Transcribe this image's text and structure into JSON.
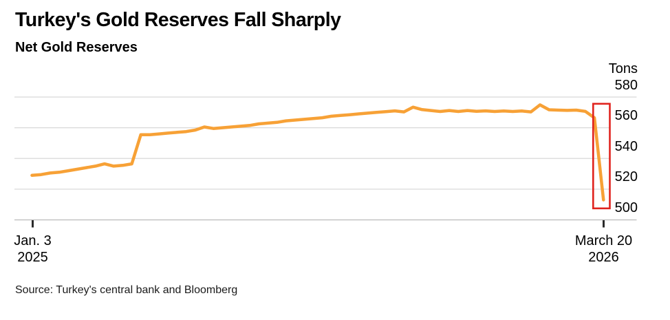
{
  "footer": {
    "source": "Source: Turkey's central bank and Bloomberg"
  },
  "colors": {
    "line": "#F7A136",
    "highlight_box": "#E0231E",
    "gridline": "#D8D8D8",
    "baseline": "#C2C2C2",
    "tick": "#2A2A2A",
    "text": "#000000",
    "background": "#FFFFFF"
  },
  "chart_data": {
    "type": "line",
    "title": "Turkey's Gold Reserves Fall Sharply",
    "subtitle": "Net Gold Reserves",
    "unit_label": "Tons",
    "ylabel": "Tons",
    "ylim": [
      500,
      580
    ],
    "yticks": [
      500,
      520,
      540,
      560,
      580
    ],
    "grid": true,
    "legend": false,
    "x_description": "Weekly observations from Jan. 3, 2025 to March 20, 2026",
    "x_ticks": [
      {
        "line1": "Jan. 3",
        "line2": "2025"
      },
      {
        "line1": "March 20",
        "line2": "2026"
      }
    ],
    "highlight": {
      "type": "box",
      "color": "#E0231E",
      "covers": "final weeks showing the sharp drop to about 513 tons"
    },
    "series": [
      {
        "name": "Net Gold Reserves",
        "color": "#F7A136",
        "values": [
          529,
          529.5,
          530.5,
          531,
          532,
          533,
          534,
          535,
          536.5,
          535,
          535.5,
          536.5,
          555.5,
          555.5,
          556,
          556.5,
          557,
          557.5,
          558.5,
          560.5,
          559.5,
          560,
          560.5,
          561,
          561.5,
          562.5,
          563,
          563.5,
          564.5,
          565,
          565.5,
          566,
          566.5,
          567.5,
          568,
          568.5,
          569,
          569.5,
          570,
          570.5,
          571,
          570.3,
          573.4,
          571.8,
          571.2,
          570.6,
          571.2,
          570.6,
          571.2,
          570.7,
          571,
          570.6,
          570.9,
          570.6,
          570.9,
          570.3,
          574.9,
          571.7,
          571.5,
          571.3,
          571.5,
          570.7,
          566.5,
          513
        ]
      }
    ]
  }
}
